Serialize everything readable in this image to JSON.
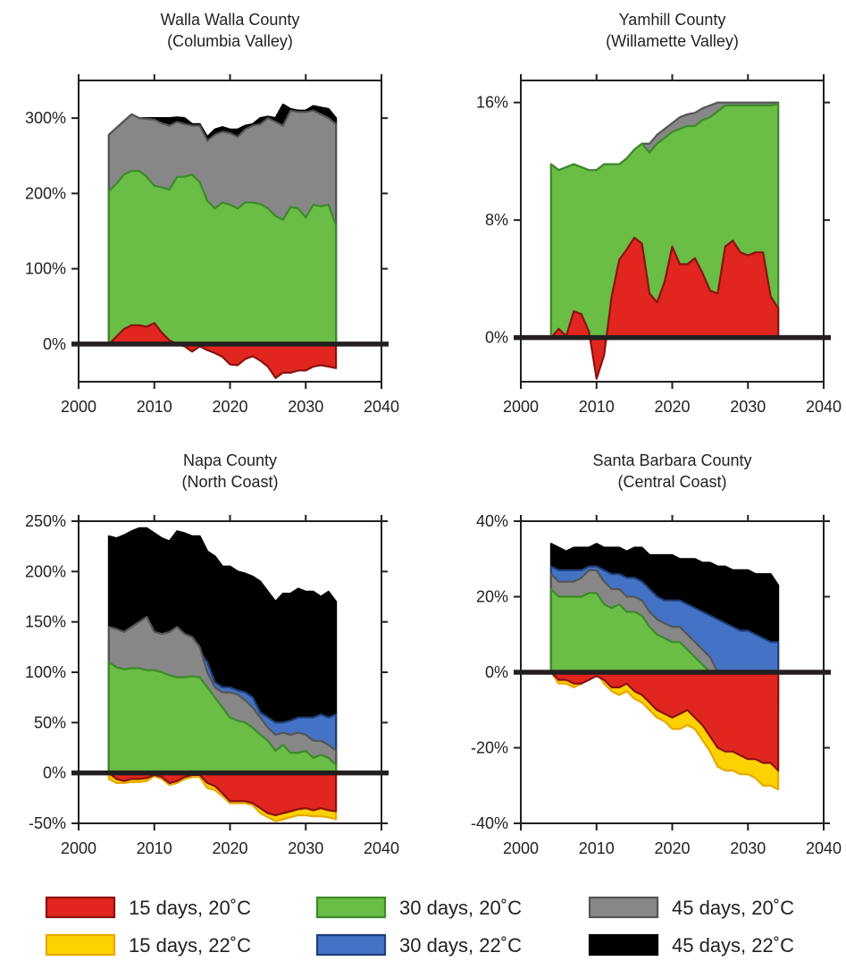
{
  "colors": {
    "15 days, 20˚C": "#e0261f",
    "15 days, 22˚C": "#fed100",
    "30 days, 20˚C": "#6abd45",
    "30 days, 22˚C": "#4473c5",
    "45 days, 20˚C": "#878787",
    "45 days, 22˚C": "#000000"
  },
  "edgeColors": {
    "15 days, 20˚C": "#8a1210",
    "15 days, 22˚C": "#e8a800",
    "30 days, 20˚C": "#3d8a2a",
    "30 days, 22˚C": "#1f3f7a",
    "45 days, 20˚C": "#555555",
    "45 days, 22˚C": "#000000"
  },
  "legend": [
    "15 days, 20˚C",
    "30 days, 20˚C",
    "45 days, 20˚C",
    "15 days, 22˚C",
    "30 days, 22˚C",
    "45 days, 22˚C"
  ],
  "chart_data": [
    {
      "type": "area",
      "title": "Walla Walla County",
      "subtitle": "(Columbia Valley)",
      "xlim": [
        2000,
        2040
      ],
      "xticks": [
        "2000",
        "2010",
        "2020",
        "2030",
        "2040"
      ],
      "ylim": [
        -50,
        350
      ],
      "yticks": [
        0,
        100,
        200,
        300
      ],
      "yticklabels": [
        "0%",
        "100%",
        "200%",
        "300%"
      ],
      "x": [
        2004,
        2005,
        2006,
        2007,
        2008,
        2009,
        2010,
        2011,
        2012,
        2013,
        2014,
        2015,
        2016,
        2017,
        2018,
        2019,
        2020,
        2021,
        2022,
        2023,
        2024,
        2025,
        2026,
        2027,
        2028,
        2029,
        2030,
        2031,
        2032,
        2033,
        2034
      ],
      "series": [
        {
          "name": "15 days, 20˚C",
          "values": [
            0,
            10,
            20,
            25,
            25,
            23,
            28,
            15,
            5,
            0,
            -3,
            -10,
            -3,
            -8,
            -12,
            -17,
            -27,
            -28,
            -20,
            -16,
            -22,
            -30,
            -45,
            -38,
            -38,
            -35,
            -35,
            -30,
            -28,
            -30,
            -32
          ]
        },
        {
          "name": "30 days, 20˚C",
          "values": [
            203,
            213,
            225,
            230,
            230,
            222,
            210,
            208,
            205,
            222,
            222,
            225,
            215,
            190,
            180,
            188,
            185,
            180,
            188,
            188,
            186,
            180,
            170,
            165,
            182,
            180,
            168,
            185,
            183,
            185,
            158
          ]
        },
        {
          "name": "45 days, 20˚C",
          "values": [
            278,
            287,
            296,
            305,
            300,
            299,
            298,
            293,
            290,
            295,
            292,
            290,
            290,
            270,
            278,
            282,
            280,
            275,
            285,
            290,
            292,
            300,
            295,
            290,
            310,
            308,
            308,
            310,
            305,
            300,
            292
          ]
        },
        {
          "name": "45 days, 22˚C",
          "values": [
            278,
            287,
            296,
            305,
            300,
            300,
            300,
            300,
            300,
            301,
            300,
            292,
            292,
            275,
            285,
            288,
            285,
            285,
            290,
            292,
            300,
            302,
            300,
            318,
            312,
            310,
            310,
            316,
            314,
            312,
            300
          ]
        }
      ]
    },
    {
      "type": "area",
      "title": "Yamhill County",
      "subtitle": "(Willamette Valley)",
      "xlim": [
        2000,
        2040
      ],
      "xticks": [
        "2000",
        "2010",
        "2020",
        "2030",
        "2040"
      ],
      "ylim": [
        -3,
        17.5
      ],
      "yticks": [
        0,
        8,
        16
      ],
      "yticklabels": [
        "0%",
        "8%",
        "16%"
      ],
      "x": [
        2004,
        2005,
        2006,
        2007,
        2008,
        2009,
        2010,
        2011,
        2012,
        2013,
        2014,
        2015,
        2016,
        2017,
        2018,
        2019,
        2020,
        2021,
        2022,
        2023,
        2024,
        2025,
        2026,
        2027,
        2028,
        2029,
        2030,
        2031,
        2032,
        2033,
        2034
      ],
      "series": [
        {
          "name": "15 days, 20˚C",
          "values": [
            0,
            0.6,
            0.1,
            1.8,
            1.6,
            0.4,
            -2.8,
            -1.2,
            2.8,
            5.3,
            6.0,
            6.8,
            6.4,
            3.0,
            2.4,
            3.8,
            6.2,
            5.0,
            5.0,
            5.4,
            4.4,
            3.2,
            3.0,
            6.2,
            6.6,
            5.8,
            5.6,
            5.8,
            5.8,
            2.8,
            2.0
          ]
        },
        {
          "name": "30 days, 20˚C",
          "values": [
            11.8,
            11.4,
            11.6,
            11.8,
            11.6,
            11.4,
            11.4,
            11.8,
            11.8,
            11.8,
            12.2,
            12.8,
            13.2,
            12.6,
            13.2,
            13.6,
            14.0,
            14.2,
            14.4,
            14.4,
            14.8,
            15.0,
            15.4,
            15.8,
            15.8,
            15.8,
            15.8,
            15.8,
            15.8,
            15.8,
            15.9
          ]
        },
        {
          "name": "45 days, 20˚C",
          "values": [
            11.8,
            11.4,
            11.6,
            11.8,
            11.6,
            11.4,
            11.4,
            11.8,
            11.8,
            11.8,
            12.2,
            12.8,
            13.2,
            13.2,
            13.8,
            14.2,
            14.6,
            15.0,
            15.2,
            15.3,
            15.6,
            15.8,
            16.0,
            16.0,
            16.0,
            16.0,
            16.0,
            16.0,
            16.0,
            16.0,
            16.0
          ]
        }
      ]
    },
    {
      "type": "area",
      "title": "Napa County",
      "subtitle": "(North Coast)",
      "xlim": [
        2000,
        2040
      ],
      "xticks": [
        "2000",
        "2010",
        "2020",
        "2030",
        "2040"
      ],
      "ylim": [
        -50,
        250
      ],
      "yticks": [
        -50,
        0,
        50,
        100,
        150,
        200,
        250
      ],
      "yticklabels": [
        "-50%",
        "0%",
        "50%",
        "100%",
        "150%",
        "200%",
        "250%"
      ],
      "x": [
        2004,
        2005,
        2006,
        2007,
        2008,
        2009,
        2010,
        2011,
        2012,
        2013,
        2014,
        2015,
        2016,
        2017,
        2018,
        2019,
        2020,
        2021,
        2022,
        2023,
        2024,
        2025,
        2026,
        2027,
        2028,
        2029,
        2030,
        2031,
        2032,
        2033,
        2034
      ],
      "series": [
        {
          "name": "15 days, 20˚C",
          "values": [
            0,
            -6,
            -8,
            -6,
            -6,
            -5,
            -2,
            -4,
            -10,
            -8,
            -4,
            -2,
            -2,
            -10,
            -13,
            -20,
            -28,
            -28,
            -28,
            -30,
            -35,
            -40,
            -42,
            -40,
            -38,
            -36,
            -35,
            -37,
            -35,
            -37,
            -38
          ]
        },
        {
          "name": "15 days, 22˚C",
          "values": [
            -6,
            -10,
            -10,
            -9,
            -9,
            -8,
            -3,
            -6,
            -12,
            -10,
            -6,
            -4,
            -4,
            -15,
            -17,
            -23,
            -30,
            -30,
            -30,
            -32,
            -40,
            -44,
            -48,
            -46,
            -44,
            -42,
            -42,
            -43,
            -43,
            -44,
            -46
          ]
        },
        {
          "name": "30 days, 20˚C",
          "values": [
            110,
            105,
            103,
            104,
            104,
            102,
            102,
            100,
            97,
            95,
            95,
            96,
            95,
            85,
            75,
            65,
            55,
            52,
            50,
            45,
            38,
            32,
            22,
            28,
            20,
            20,
            22,
            15,
            18,
            15,
            8
          ]
        },
        {
          "name": "45 days, 20˚C",
          "values": [
            145,
            143,
            140,
            145,
            150,
            155,
            140,
            138,
            140,
            145,
            138,
            135,
            125,
            100,
            85,
            80,
            80,
            78,
            72,
            65,
            55,
            45,
            38,
            40,
            38,
            40,
            38,
            32,
            32,
            28,
            22
          ]
        },
        {
          "name": "30 days, 22˚C",
          "values": [
            133,
            127,
            128,
            130,
            130,
            130,
            128,
            125,
            115,
            125,
            130,
            128,
            120,
            110,
            90,
            85,
            85,
            82,
            80,
            75,
            60,
            55,
            50,
            50,
            52,
            55,
            55,
            55,
            58,
            55,
            58
          ]
        },
        {
          "name": "45 days, 22˚C",
          "values": [
            235,
            233,
            236,
            240,
            243,
            243,
            238,
            233,
            230,
            240,
            238,
            235,
            235,
            220,
            215,
            205,
            205,
            200,
            198,
            195,
            190,
            180,
            170,
            178,
            178,
            183,
            180,
            180,
            175,
            180,
            170
          ]
        }
      ]
    },
    {
      "type": "area",
      "title": "Santa Barbara County",
      "subtitle": "(Central Coast)",
      "xlim": [
        2000,
        2040
      ],
      "xticks": [
        "2000",
        "2010",
        "2020",
        "2030",
        "2040"
      ],
      "ylim": [
        -40,
        40
      ],
      "yticks": [
        -40,
        -20,
        0,
        20,
        40
      ],
      "yticklabels": [
        "-40%",
        "-20%",
        "0%",
        "20%",
        "40%"
      ],
      "x": [
        2004,
        2005,
        2006,
        2007,
        2008,
        2009,
        2010,
        2011,
        2012,
        2013,
        2014,
        2015,
        2016,
        2017,
        2018,
        2019,
        2020,
        2021,
        2022,
        2023,
        2024,
        2025,
        2026,
        2027,
        2028,
        2029,
        2030,
        2031,
        2032,
        2033,
        2034
      ],
      "series": [
        {
          "name": "15 days, 20˚C",
          "values": [
            0,
            -2,
            -2,
            -3,
            -3,
            -2,
            -1,
            -2,
            -4,
            -4,
            -3,
            -5,
            -6,
            -8,
            -10,
            -11,
            -12,
            -11,
            -10,
            -12,
            -14,
            -17,
            -20,
            -21,
            -21,
            -22,
            -23,
            -23,
            -24,
            -24,
            -26
          ]
        },
        {
          "name": "15 days, 22˚C",
          "values": [
            0,
            -3,
            -3,
            -4,
            -3,
            -1,
            0,
            -3,
            -5,
            -6,
            -5,
            -7,
            -8,
            -10,
            -12,
            -13,
            -15,
            -15,
            -14,
            -15,
            -18,
            -21,
            -25,
            -26,
            -26,
            -27,
            -27,
            -28,
            -30,
            -30,
            -31
          ]
        },
        {
          "name": "30 days, 20˚C",
          "values": [
            22,
            20,
            20,
            20,
            20,
            21,
            21,
            18,
            17,
            18,
            16,
            16,
            15,
            12,
            10,
            9,
            8,
            8,
            6,
            4,
            2,
            0,
            -3,
            -4,
            -5,
            -6,
            -7,
            -8,
            -9,
            -10,
            -12
          ]
        },
        {
          "name": "45 days, 20˚C",
          "values": [
            26,
            24,
            24,
            24,
            25,
            27,
            27,
            24,
            22,
            22,
            20,
            20,
            19,
            16,
            14,
            13,
            12,
            12,
            10,
            8,
            6,
            4,
            0,
            -1,
            -2,
            -3,
            -4,
            -5,
            -6,
            -7,
            -8
          ]
        },
        {
          "name": "30 days, 22˚C",
          "values": [
            28,
            27,
            27,
            27,
            27,
            28,
            28,
            27,
            26,
            26,
            25,
            25,
            24,
            22,
            20,
            19,
            19,
            19,
            18,
            17,
            16,
            15,
            14,
            13,
            12,
            11,
            11,
            10,
            9,
            8,
            8
          ]
        },
        {
          "name": "45 days, 22˚C",
          "values": [
            34,
            33,
            32,
            33,
            33,
            33,
            34,
            33,
            33,
            33,
            32,
            33,
            33,
            31,
            31,
            31,
            31,
            30,
            30,
            30,
            29,
            29,
            28,
            28,
            27,
            27,
            27,
            26,
            26,
            26,
            23
          ]
        }
      ]
    }
  ]
}
